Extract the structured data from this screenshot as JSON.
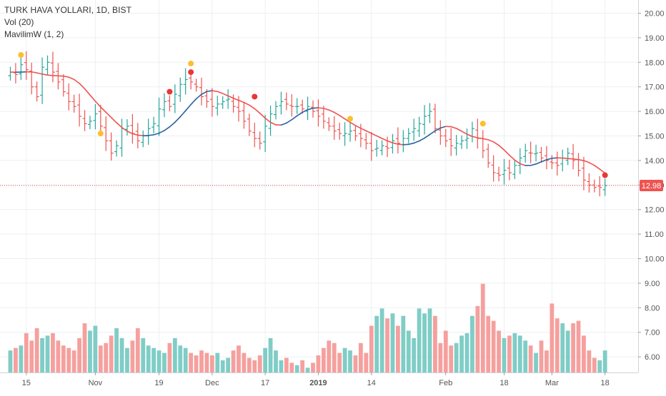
{
  "legend": {
    "title": "TURK HAVA YOLLARI, 1D, BIST",
    "volume": "Vol (20)",
    "indicator": "MavilimW (1, 2)"
  },
  "colors": {
    "up": "#26a69a",
    "down": "#ef5350",
    "up_volume": "#7fcdc6",
    "down_volume": "#f5a09e",
    "ma_red": "#ef5350",
    "ma_blue": "#2962a3",
    "signal_yellow": "#fbc02d",
    "signal_red": "#e53935",
    "last_price": "#ef5350",
    "grid": "#eceff2"
  },
  "last_price": {
    "label": "12.98",
    "value": 12.98
  },
  "chart_data": {
    "type": "ohlc",
    "title": "TURK HAVA YOLLARI, 1D, BIST",
    "y_axis": {
      "ticks": [
        "6.00",
        "7.00",
        "8.00",
        "9.00",
        "10.00",
        "11.00",
        "12.00",
        "13.00",
        "14.00",
        "15.00",
        "16.00",
        "17.00",
        "18.00",
        "19.00",
        "20.00"
      ],
      "range": [
        5.7,
        20.3
      ]
    },
    "x_axis": {
      "labels": [
        {
          "text": "15",
          "bar": 3,
          "bold": false
        },
        {
          "text": "Nov",
          "bar": 16,
          "bold": false
        },
        {
          "text": "19",
          "bar": 28,
          "bold": false
        },
        {
          "text": "Dec",
          "bar": 38,
          "bold": false
        },
        {
          "text": "17",
          "bar": 48,
          "bold": false
        },
        {
          "text": "2019",
          "bar": 58,
          "bold": true
        },
        {
          "text": "14",
          "bar": 68,
          "bold": false
        },
        {
          "text": "Feb",
          "bar": 82,
          "bold": false
        },
        {
          "text": "18",
          "bar": 93,
          "bold": false
        },
        {
          "text": "Mar",
          "bar": 102,
          "bold": false
        },
        {
          "text": "18",
          "bar": 112,
          "bold": false
        }
      ]
    },
    "close": [
      17.6,
      17.5,
      17.9,
      17.7,
      17.0,
      16.6,
      17.8,
      18.0,
      17.6,
      17.2,
      16.8,
      16.4,
      16.2,
      15.8,
      15.5,
      15.6,
      15.9,
      15.4,
      14.8,
      14.3,
      14.6,
      15.3,
      15.4,
      15.1,
      14.8,
      15.0,
      15.3,
      15.5,
      16.1,
      16.4,
      16.2,
      16.7,
      17.1,
      17.3,
      17.2,
      17.0,
      16.6,
      16.4,
      16.2,
      16.3,
      16.4,
      16.5,
      16.2,
      16.0,
      15.6,
      15.2,
      14.9,
      14.7,
      15.4,
      15.9,
      16.2,
      16.4,
      16.3,
      16.2,
      16.2,
      16.1,
      16.2,
      16.0,
      15.8,
      15.6,
      15.4,
      15.2,
      15.1,
      15.1,
      15.2,
      15.0,
      14.9,
      14.7,
      14.4,
      14.5,
      14.6,
      14.5,
      14.8,
      14.7,
      14.9,
      15.1,
      15.3,
      15.5,
      15.8,
      16.0,
      15.3,
      15.0,
      14.8,
      14.6,
      14.7,
      14.8,
      14.9,
      15.3,
      14.9,
      14.4,
      13.9,
      13.5,
      13.4,
      13.6,
      13.5,
      13.8,
      14.1,
      14.4,
      14.3,
      14.3,
      14.1,
      14.0,
      13.9,
      13.8,
      14.1,
      14.3,
      14.0,
      13.6,
      13.2,
      13.0,
      12.9,
      12.9,
      12.98
    ],
    "volume": [
      6.4,
      6.5,
      6.6,
      7.1,
      6.8,
      7.3,
      6.9,
      7.0,
      7.1,
      6.8,
      6.6,
      6.5,
      6.4,
      6.9,
      7.5,
      7.2,
      7.4,
      6.6,
      6.7,
      7.0,
      7.3,
      6.9,
      6.5,
      6.8,
      7.3,
      6.9,
      6.6,
      6.5,
      6.4,
      6.3,
      6.7,
      6.9,
      6.6,
      6.5,
      6.3,
      6.2,
      6.4,
      6.3,
      6.2,
      6.3,
      6.0,
      6.1,
      6.4,
      6.6,
      6.3,
      6.1,
      6.0,
      6.2,
      6.5,
      6.9,
      6.4,
      6.0,
      6.1,
      5.9,
      5.8,
      6.0,
      5.7,
      5.9,
      6.2,
      6.5,
      6.8,
      6.7,
      6.3,
      6.5,
      6.4,
      6.2,
      6.7,
      6.3,
      7.4,
      7.8,
      8.1,
      7.7,
      7.9,
      7.4,
      7.8,
      7.2,
      6.9,
      8.1,
      7.9,
      8.1,
      7.8,
      6.7,
      7.2,
      6.6,
      6.7,
      7.0,
      7.1,
      7.8,
      8.2,
      9.1,
      7.8,
      7.6,
      7.2,
      6.9,
      7.0,
      7.1,
      7.0,
      6.8,
      6.6,
      6.3,
      6.8,
      6.4,
      8.3,
      7.7,
      7.5,
      7.2,
      7.5,
      7.6,
      7.0,
      6.4,
      6.1,
      6.0,
      6.4
    ],
    "signals": [
      {
        "bar": 2,
        "type": "yellow",
        "value": 18.3
      },
      {
        "bar": 17,
        "type": "yellow",
        "value": 15.1
      },
      {
        "bar": 30,
        "type": "red",
        "value": 16.8
      },
      {
        "bar": 34,
        "type": "yellow",
        "value": 17.95
      },
      {
        "bar": 34,
        "type": "red",
        "value": 17.6
      },
      {
        "bar": 46,
        "type": "red",
        "value": 16.6
      },
      {
        "bar": 64,
        "type": "yellow",
        "value": 15.7
      },
      {
        "bar": 89,
        "type": "yellow",
        "value": 15.5
      },
      {
        "bar": 112,
        "type": "red",
        "value": 13.4
      }
    ]
  }
}
